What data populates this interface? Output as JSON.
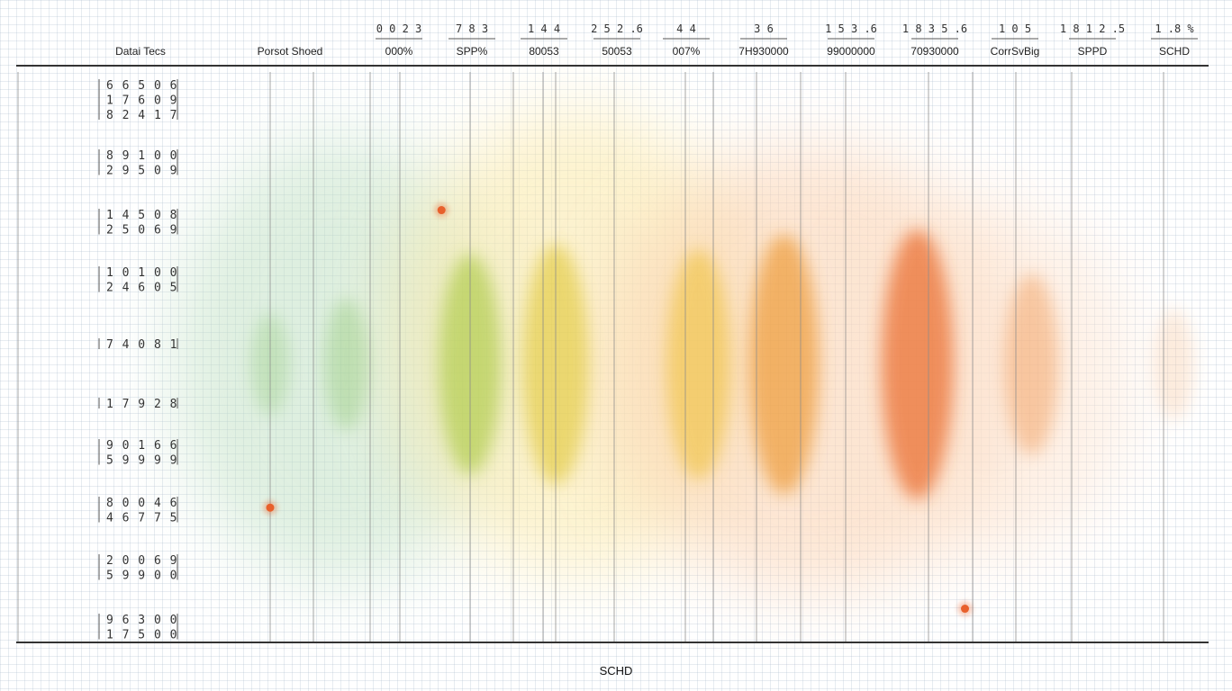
{
  "chart_data": {
    "type": "heatmap",
    "title": "",
    "row_header": "Datai Tecs",
    "first_column_header": "Porsot Shoed",
    "xlabel": "SCHD",
    "columns": [
      {
        "top": "0 0 2 3",
        "sub": "000%"
      },
      {
        "top": "7 8 3",
        "sub": "SPP%"
      },
      {
        "top": "1 4 4",
        "sub": "80053"
      },
      {
        "top": "2 5 2 .6",
        "sub": "50053"
      },
      {
        "top": "4 4",
        "sub": "007%"
      },
      {
        "top": "3 6",
        "sub": "7H930000"
      },
      {
        "top": "1 5 3 .6",
        "sub": "99000000"
      },
      {
        "top": "1 8 3 5 .6",
        "sub": "70930000"
      },
      {
        "top": "1 0 5",
        "sub": "CorrSvBig"
      },
      {
        "top": "1 8 1 2 .5",
        "sub": "SPPD"
      },
      {
        "top": "1 .8 %",
        "sub": "SCHD"
      }
    ],
    "rows": [
      [
        "6 6 5 0 6",
        "1 7 6 0 9",
        "8 2 4 1 7"
      ],
      [
        "8 9 1 0 0",
        "2 9 5 0 9"
      ],
      [
        "1 4 5 0 8",
        "2 5 0 6 9"
      ],
      [
        "1 0 1 0 0",
        "2 4 6 0 5"
      ],
      [
        "7 4 0 8 1"
      ],
      [
        "1 7 9 2 8"
      ],
      [
        "9 0 1 6 6",
        "5 9 9 9 9"
      ],
      [
        "8 0 0 4 6",
        "4 6 7 7 5"
      ],
      [
        "2 0 0 6 9",
        "5 9 9 0 0"
      ],
      [
        "9 6 3 0 0",
        "1 7 5 0 0"
      ]
    ],
    "color_scale": [
      "#8cc66f",
      "#e2c93a",
      "#f3a444",
      "#ea6a2c"
    ],
    "intensity_profile": [
      {
        "x": 0.0,
        "v": 0.15,
        "color": "#8cc66f"
      },
      {
        "x": 0.8,
        "v": 0.3,
        "color": "#8cc66f"
      },
      {
        "x": 2.1,
        "v": 0.75,
        "color": "#a8c83a"
      },
      {
        "x": 3.0,
        "v": 0.85,
        "color": "#e2c93a"
      },
      {
        "x": 4.5,
        "v": 0.8,
        "color": "#f0c240"
      },
      {
        "x": 5.4,
        "v": 0.95,
        "color": "#ee9a35"
      },
      {
        "x": 6.8,
        "v": 1.0,
        "color": "#ea6a2c"
      },
      {
        "x": 8.0,
        "v": 0.55,
        "color": "#f3a060"
      },
      {
        "x": 9.5,
        "v": 0.2,
        "color": "#f7c8a0"
      }
    ],
    "highlights": [
      {
        "x": 1.8,
        "y": 2.3,
        "color": "#e8602c"
      },
      {
        "x": 0.0,
        "y": 7.6,
        "color": "#e8602c"
      },
      {
        "x": 7.3,
        "y": 9.4,
        "color": "#e8602c"
      }
    ],
    "grid": true
  }
}
